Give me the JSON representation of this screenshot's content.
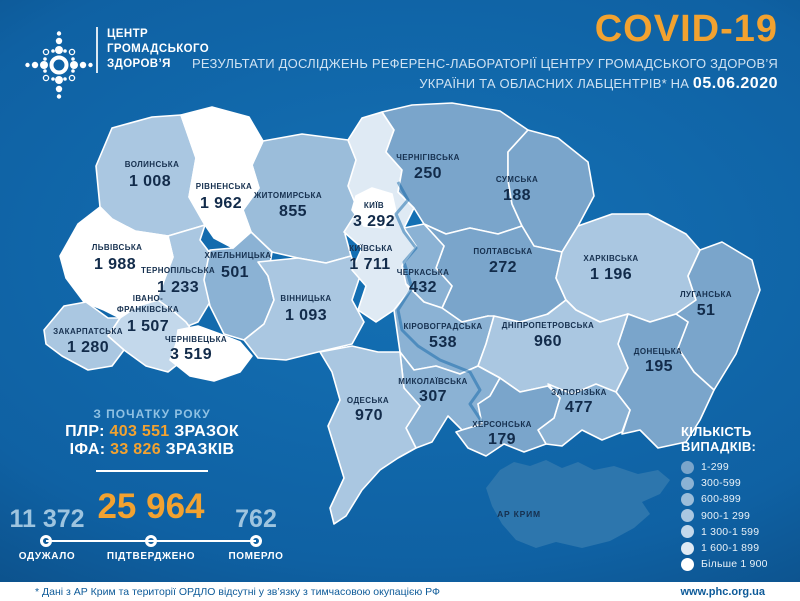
{
  "header": {
    "brand_lines": [
      "ЦЕНТР",
      "ГРОМАДСЬКОГО",
      "ЗДОРОВ’Я"
    ],
    "title": "COVID-19",
    "subtitle_line1": "РЕЗУЛЬТАТИ ДОСЛІДЖЕНЬ РЕФЕРЕНС-ЛАБОРАТОРІЇ ЦЕНТРУ ГРОМАДСЬКОГО ЗДОРОВ’Я",
    "subtitle_line2_prefix": "УКРАЇНИ ТА ОБЛАСНИХ ЛАБЦЕНТРІВ* НА ",
    "date": "05.06.2020"
  },
  "stats": {
    "since_label": "З ПОЧАТКУ РОКУ",
    "pcr_label": "ПЛР:",
    "pcr_value": "403 551",
    "pcr_unit": "ЗРАЗОК",
    "ifa_label": "ІФА:",
    "ifa_value": "33 826",
    "ifa_unit": "ЗРАЗКІВ",
    "recovered_value": "11 372",
    "recovered_label": "ОДУЖАЛО",
    "confirmed_value": "25 964",
    "confirmed_label": "ПІДТВЕРДЖЕНО",
    "died_value": "762",
    "died_label": "ПОМЕРЛО"
  },
  "legend": {
    "title_lines": [
      "КІЛЬКІСТЬ",
      "ВИПАДКІВ:"
    ],
    "items": [
      {
        "label": "1-299",
        "color": "#7aa5cb"
      },
      {
        "label": "300-599",
        "color": "#8bb2d4"
      },
      {
        "label": "600-899",
        "color": "#9bbdda"
      },
      {
        "label": "900-1 299",
        "color": "#aac7e1"
      },
      {
        "label": "1 300-1 599",
        "color": "#c3d8eb"
      },
      {
        "label": "1 600-1 899",
        "color": "#dfeaf4"
      },
      {
        "label": "Більше 1 900",
        "color": "#ffffff"
      }
    ]
  },
  "map": {
    "crimea_fill": "#2d76ad",
    "regions": [
      {
        "id": "zhytomyr",
        "name": "ЖИТОМИРСЬКА",
        "value": "855",
        "range": 2
      },
      {
        "id": "volyn",
        "name": "ВОЛИНСЬКА",
        "value": "1 008",
        "range": 3
      },
      {
        "id": "ternopil",
        "name": "ТЕРНОПІЛЬСЬКА",
        "value": "1 233",
        "range": 3
      },
      {
        "id": "khmelnytskyi",
        "name": "ХМЕЛЬНИЦЬКА",
        "value": "501",
        "range": 1
      },
      {
        "id": "vinnytsia",
        "name": "ВІННИЦЬКА",
        "value": "1 093",
        "range": 3
      },
      {
        "id": "lviv",
        "name": "ЛЬВІВСЬКА",
        "value": "1 988",
        "range": 6
      },
      {
        "id": "ivano",
        "name": "ІВАНО-\nФРАНКІВСЬКА",
        "value": "1 507",
        "range": 4
      },
      {
        "id": "zakarpattia",
        "name": "ЗАКАРПАТСЬКА",
        "value": "1 280",
        "range": 3
      },
      {
        "id": "chernivtsi",
        "name": "ЧЕРНІВЕЦЬКА",
        "value": "3 519",
        "range": 6
      },
      {
        "id": "rivne",
        "name": "РІВНЕНСЬКА",
        "value": "1 962",
        "range": 6
      },
      {
        "id": "kyivska",
        "name": "КИЇВСЬКА",
        "value": "1 711",
        "range": 5
      },
      {
        "id": "chernihiv",
        "name": "ЧЕРНІГІВСЬКА",
        "value": "250",
        "range": 0
      },
      {
        "id": "sumy",
        "name": "СУМСЬКА",
        "value": "188",
        "range": 0
      },
      {
        "id": "poltava",
        "name": "ПОЛТАВСЬКА",
        "value": "272",
        "range": 0
      },
      {
        "id": "cherkasy",
        "name": "ЧЕРКАСЬКА",
        "value": "432",
        "range": 1
      },
      {
        "id": "kirovohrad",
        "name": "КІРОВОГРАДСЬКА",
        "value": "538",
        "range": 1
      },
      {
        "id": "kharkiv",
        "name": "ХАРКІВСЬКА",
        "value": "1 196",
        "range": 3
      },
      {
        "id": "luhansk",
        "name": "ЛУГАНСЬКА",
        "value": "51",
        "range": 0
      },
      {
        "id": "donetsk",
        "name": "ДОНЕЦЬКА",
        "value": "195",
        "range": 0
      },
      {
        "id": "dnipro",
        "name": "ДНІПРОПЕТРОВСЬКА",
        "value": "960",
        "range": 3
      },
      {
        "id": "zaporizhzhia",
        "name": "ЗАПОРІЗЬКА",
        "value": "477",
        "range": 1
      },
      {
        "id": "mykolaiv",
        "name": "МИКОЛАЇВСЬКА",
        "value": "307",
        "range": 1
      },
      {
        "id": "odesa",
        "name": "ОДЕСЬКА",
        "value": "970",
        "range": 3
      },
      {
        "id": "kherson",
        "name": "ХЕРСОНСЬКА",
        "value": "179",
        "range": 0
      },
      {
        "id": "crimea",
        "name": "АР КРИМ",
        "value": "",
        "range": -1
      },
      {
        "id": "kyiv_city",
        "name": "КИЇВ",
        "value": "3 292",
        "range": 6
      }
    ]
  },
  "footer": {
    "note": "* Дані з АР Крим та території ОРДЛО відсутні у зв’язку з тимчасовою окупацією РФ",
    "site": "www.phc.org.ua"
  },
  "colors": {
    "accent_orange": "#F2A230",
    "background_blue": "#0f61a3",
    "label_navy": "#16304f"
  }
}
